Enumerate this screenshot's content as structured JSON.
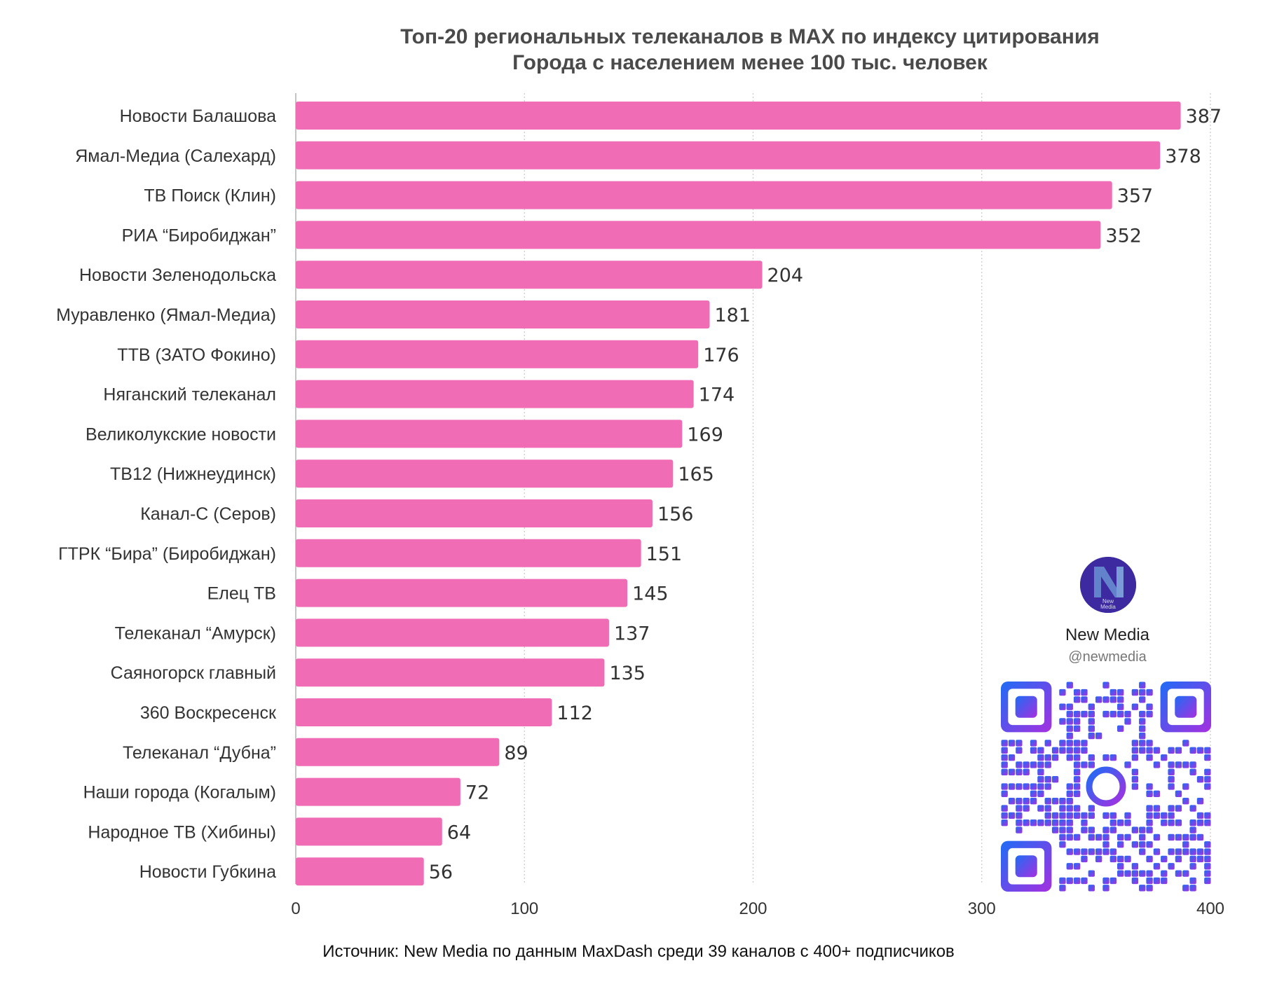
{
  "chart_data": {
    "type": "bar",
    "orientation": "horizontal",
    "title": "Топ-20 региональных телеканалов в MAX по индексу цитирования",
    "subtitle": "Города с населением менее 100 тыс. человек",
    "categories": [
      "Новости Балашова",
      "Ямал-Медиа (Салехард)",
      "ТВ Поиск (Клин)",
      "РИА “Биробиджан”",
      "Новости Зеленодольска",
      "Муравленко (Ямал-Медиа)",
      "ТТВ (ЗАТО Фокино)",
      "Няганский телеканал",
      "Великолукские новости",
      "ТВ12 (Нижнеудинск)",
      "Канал-С (Серов)",
      "ГТРК “Бира” (Биробиджан)",
      "Елец ТВ",
      "Телеканал “Амурск)",
      "Саяногорск главный",
      "360 Воскресенск",
      "Телеканал “Дубна”",
      "Наши города (Когалым)",
      "Народное ТВ (Хибины)",
      "Новости Губкина"
    ],
    "values": [
      387,
      378,
      357,
      352,
      204,
      181,
      176,
      174,
      169,
      165,
      156,
      151,
      145,
      137,
      135,
      112,
      89,
      72,
      64,
      56
    ],
    "xticks": [
      0,
      100,
      200,
      300,
      400
    ],
    "xlim": [
      0,
      400
    ],
    "grid": "vertical dashed",
    "bar_color": "#f06cb5",
    "source": "Источник: New Media по данным MaxDash среди 39 каналов с 400+ подписчиков"
  },
  "brand": {
    "logo_text": "New Media",
    "name": "New Media",
    "handle": "@newmedia"
  },
  "colors": {
    "bar": "#f06cb5",
    "logo_bg": "#3d2aa0",
    "qr_gradient_start": "#1e6cf5",
    "qr_gradient_end": "#a530e0"
  }
}
